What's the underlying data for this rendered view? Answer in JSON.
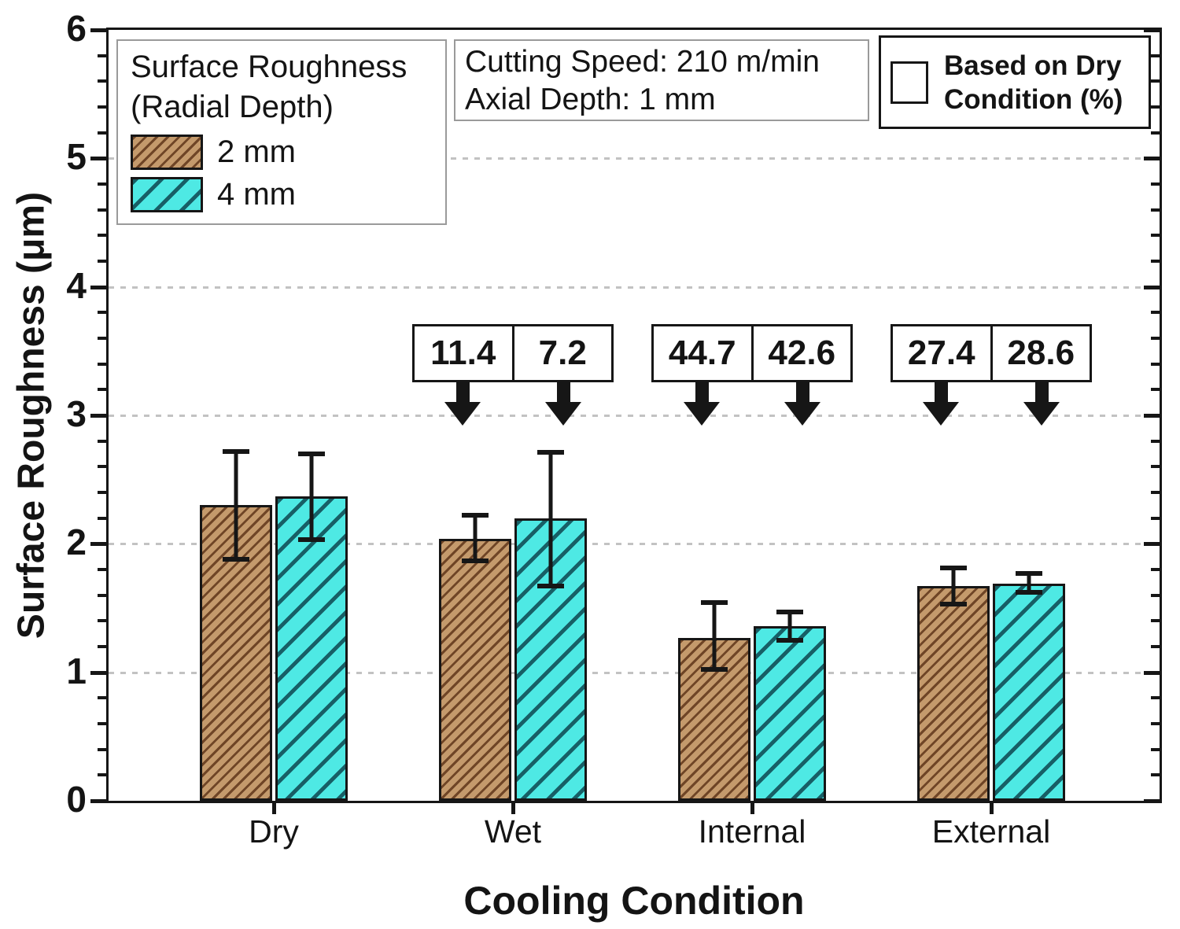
{
  "legend": {
    "title_line1": "Surface Roughness",
    "title_line2": "(Radial Depth)",
    "items": [
      {
        "label": "2 mm"
      },
      {
        "label": "4 mm"
      }
    ]
  },
  "info_box": {
    "line1": "Cutting Speed: 210 m/min",
    "line2": "Axial Depth: 1 mm"
  },
  "reference_box": {
    "line1": "Based on Dry",
    "line2": "Condition (%)"
  },
  "chart_data": {
    "type": "bar",
    "title": "",
    "xlabel": "Cooling Condition",
    "ylabel": "Surface Roughness (μm)",
    "ylim": [
      0,
      6
    ],
    "yticks": [
      0,
      1,
      2,
      3,
      4,
      5,
      6
    ],
    "minor_tick_step": 0.2,
    "grid": "horizontal-dashed-at-integers",
    "legend_position": "top-left",
    "categories": [
      "Dry",
      "Wet",
      "Internal",
      "External"
    ],
    "series": [
      {
        "name": "2 mm",
        "fill_color": "#c49a6c",
        "hatch_color": "#6f4526",
        "hatch_style": "thin-diagonal",
        "values": [
          2.3,
          2.04,
          1.27,
          1.67
        ],
        "error_upper": [
          2.72,
          2.22,
          1.54,
          1.81
        ],
        "error_lower": [
          1.88,
          1.87,
          1.02,
          1.53
        ]
      },
      {
        "name": "4 mm",
        "fill_color": "#4ee9e4",
        "hatch_color": "#175f66",
        "hatch_style": "thick-diagonal",
        "values": [
          2.37,
          2.2,
          1.36,
          1.69
        ],
        "error_upper": [
          2.7,
          2.71,
          1.47,
          1.77
        ],
        "error_lower": [
          2.03,
          1.67,
          1.25,
          1.62
        ]
      }
    ],
    "reduction_vs_dry_pct": [
      {
        "category": "Wet",
        "values": [
          "11.4",
          "7.2"
        ]
      },
      {
        "category": "Internal",
        "values": [
          "44.7",
          "42.6"
        ]
      },
      {
        "category": "External",
        "values": [
          "27.4",
          "28.6"
        ]
      }
    ]
  }
}
